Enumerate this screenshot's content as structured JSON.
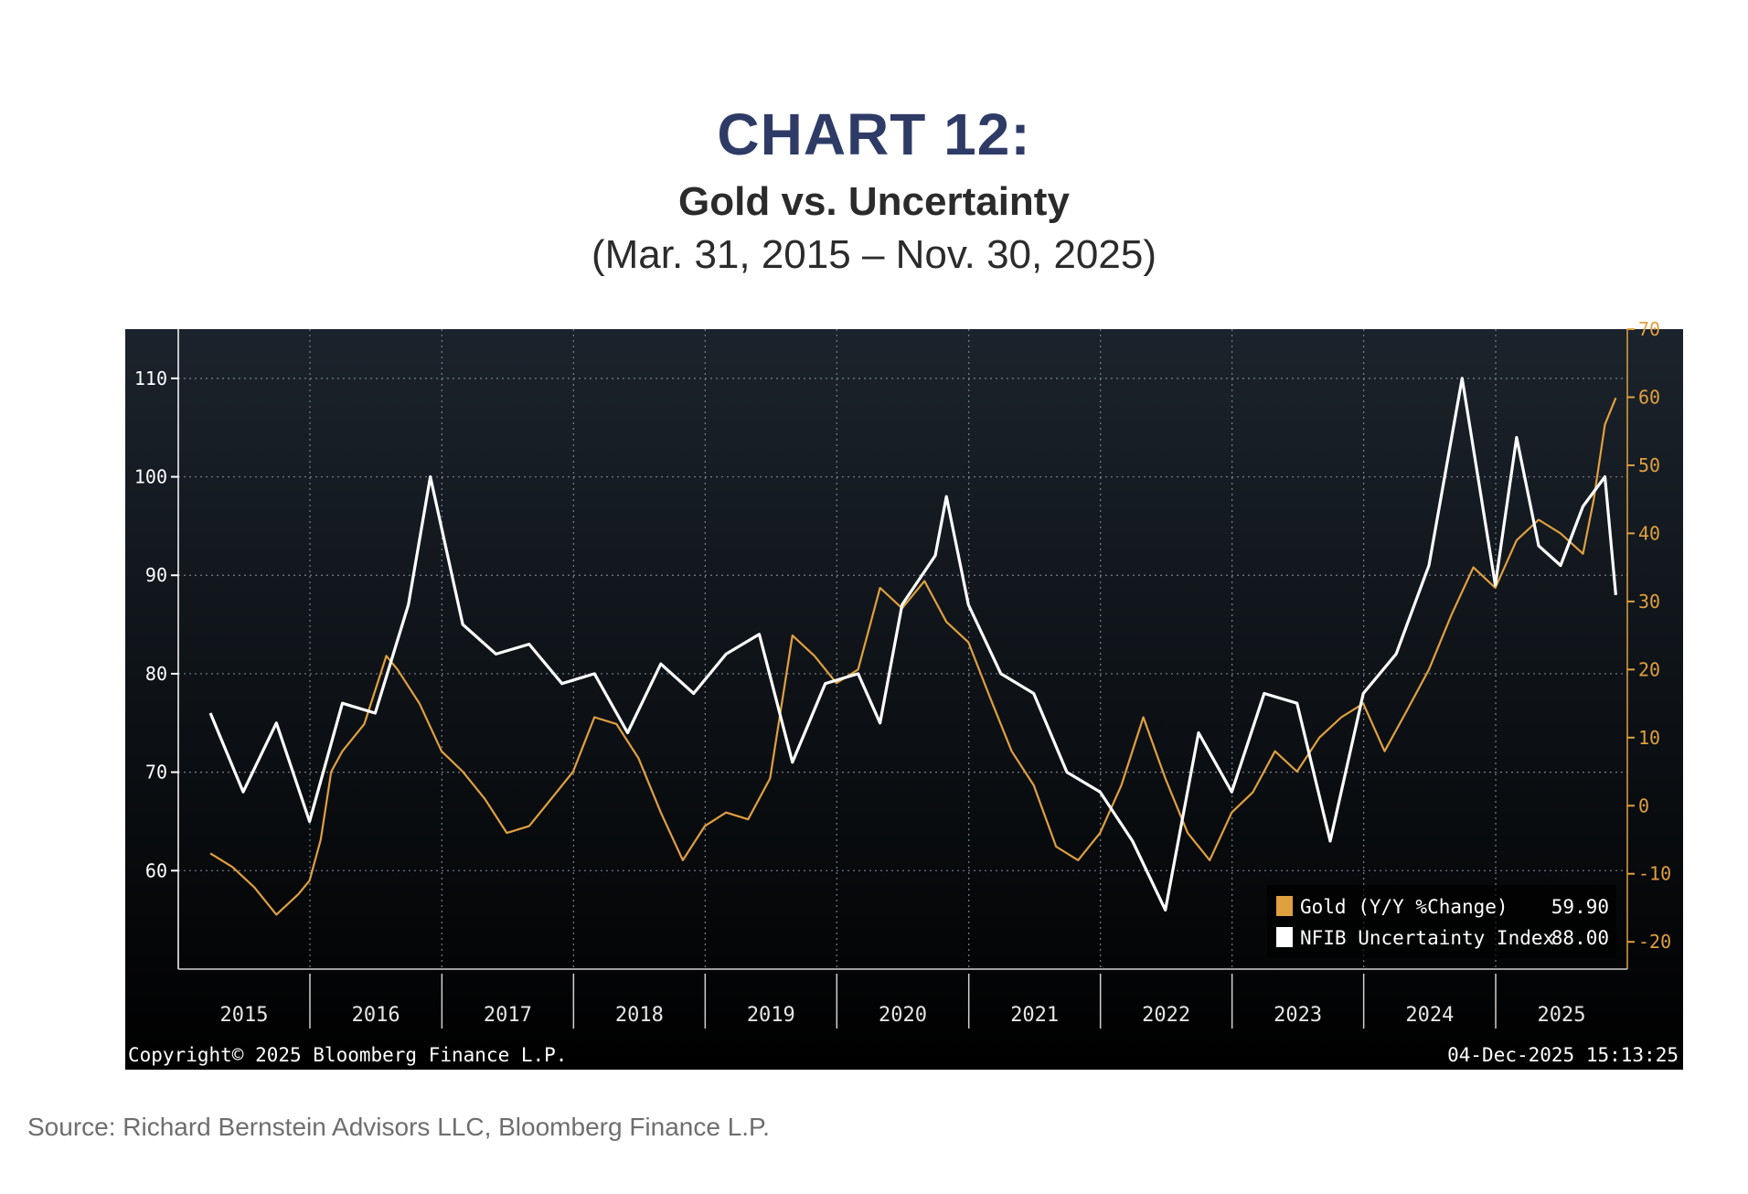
{
  "header": {
    "chart_number": "CHART 12:",
    "title": "Gold vs. Uncertainty",
    "period": "(Mar. 31, 2015 – Nov. 30, 2025)"
  },
  "source": "Source: Richard Bernstein Advisors LLC, Bloomberg Finance L.P.",
  "footer": {
    "copyright": "Copyright© 2025 Bloomberg Finance L.P.",
    "timestamp": "04-Dec-2025 15:13:25"
  },
  "colors": {
    "background_top": "#1b232c",
    "background_bottom": "#000000",
    "gold": "#e0a040",
    "uncertainty": "#ffffff",
    "left_axis": "#ffffff",
    "right_axis": "#e0a040"
  },
  "chart_data": {
    "type": "line",
    "x_range": [
      "2015-03-31",
      "2025-11-30"
    ],
    "year_labels": [
      "2015",
      "2016",
      "2017",
      "2018",
      "2019",
      "2020",
      "2021",
      "2022",
      "2023",
      "2024",
      "2025"
    ],
    "left_axis": {
      "ticks": [
        "60",
        "70",
        "80",
        "90",
        "100",
        "110"
      ],
      "ylim": [
        50,
        115
      ]
    },
    "right_axis": {
      "ticks": [
        "-20",
        "-10",
        "0",
        "10",
        "20",
        "30",
        "40",
        "50",
        "60",
        "70"
      ],
      "ylim": [
        -24,
        70
      ]
    },
    "grid": true,
    "legend_position": "bottom-right",
    "series": [
      {
        "name": "Gold (Y/Y %Change)",
        "axis": "right",
        "last_value": "59.90",
        "points": [
          [
            "2015-03-31",
            -7
          ],
          [
            "2015-05-31",
            -9
          ],
          [
            "2015-07-31",
            -12
          ],
          [
            "2015-09-30",
            -16
          ],
          [
            "2015-11-30",
            -13
          ],
          [
            "2015-12-31",
            -11
          ],
          [
            "2016-01-31",
            -5
          ],
          [
            "2016-02-29",
            5
          ],
          [
            "2016-03-31",
            8
          ],
          [
            "2016-05-31",
            12
          ],
          [
            "2016-07-31",
            22
          ],
          [
            "2016-08-31",
            20
          ],
          [
            "2016-10-31",
            15
          ],
          [
            "2016-12-31",
            8
          ],
          [
            "2017-02-28",
            5
          ],
          [
            "2017-04-30",
            1
          ],
          [
            "2017-06-30",
            -4
          ],
          [
            "2017-08-31",
            -3
          ],
          [
            "2017-10-31",
            1
          ],
          [
            "2017-12-31",
            5
          ],
          [
            "2018-02-28",
            13
          ],
          [
            "2018-04-30",
            12
          ],
          [
            "2018-06-30",
            7
          ],
          [
            "2018-08-31",
            -1
          ],
          [
            "2018-10-31",
            -8
          ],
          [
            "2018-12-31",
            -3
          ],
          [
            "2019-02-28",
            -1
          ],
          [
            "2019-04-30",
            -2
          ],
          [
            "2019-06-30",
            4
          ],
          [
            "2019-08-31",
            25
          ],
          [
            "2019-10-31",
            22
          ],
          [
            "2019-12-31",
            18
          ],
          [
            "2020-02-29",
            20
          ],
          [
            "2020-04-30",
            32
          ],
          [
            "2020-06-30",
            29
          ],
          [
            "2020-08-31",
            33
          ],
          [
            "2020-10-31",
            27
          ],
          [
            "2020-12-31",
            24
          ],
          [
            "2021-02-28",
            16
          ],
          [
            "2021-04-30",
            8
          ],
          [
            "2021-06-30",
            3
          ],
          [
            "2021-08-31",
            -6
          ],
          [
            "2021-10-31",
            -8
          ],
          [
            "2021-12-31",
            -4
          ],
          [
            "2022-02-28",
            3
          ],
          [
            "2022-04-30",
            13
          ],
          [
            "2022-06-30",
            4
          ],
          [
            "2022-08-31",
            -4
          ],
          [
            "2022-10-31",
            -8
          ],
          [
            "2022-12-31",
            -1
          ],
          [
            "2023-02-28",
            2
          ],
          [
            "2023-04-30",
            8
          ],
          [
            "2023-06-30",
            5
          ],
          [
            "2023-08-31",
            10
          ],
          [
            "2023-10-31",
            13
          ],
          [
            "2023-12-31",
            15
          ],
          [
            "2024-02-28",
            8
          ],
          [
            "2024-04-30",
            14
          ],
          [
            "2024-06-30",
            20
          ],
          [
            "2024-08-31",
            28
          ],
          [
            "2024-10-31",
            35
          ],
          [
            "2024-12-31",
            32
          ],
          [
            "2025-02-28",
            39
          ],
          [
            "2025-04-30",
            42
          ],
          [
            "2025-06-30",
            40
          ],
          [
            "2025-08-31",
            37
          ],
          [
            "2025-09-30",
            45
          ],
          [
            "2025-10-31",
            56
          ],
          [
            "2025-11-30",
            59.9
          ]
        ]
      },
      {
        "name": "NFIB Uncertainty Index",
        "axis": "left",
        "last_value": "88.00",
        "points": [
          [
            "2015-03-31",
            76
          ],
          [
            "2015-06-30",
            68
          ],
          [
            "2015-09-30",
            75
          ],
          [
            "2015-12-31",
            65
          ],
          [
            "2016-03-31",
            77
          ],
          [
            "2016-06-30",
            76
          ],
          [
            "2016-09-30",
            87
          ],
          [
            "2016-11-30",
            100
          ],
          [
            "2017-02-28",
            85
          ],
          [
            "2017-05-31",
            82
          ],
          [
            "2017-08-31",
            83
          ],
          [
            "2017-11-30",
            79
          ],
          [
            "2018-02-28",
            80
          ],
          [
            "2018-05-31",
            74
          ],
          [
            "2018-08-31",
            81
          ],
          [
            "2018-11-30",
            78
          ],
          [
            "2019-02-28",
            82
          ],
          [
            "2019-05-31",
            84
          ],
          [
            "2019-08-31",
            71
          ],
          [
            "2019-11-30",
            79
          ],
          [
            "2020-02-29",
            80
          ],
          [
            "2020-04-30",
            75
          ],
          [
            "2020-06-30",
            87
          ],
          [
            "2020-09-30",
            92
          ],
          [
            "2020-10-31",
            98
          ],
          [
            "2020-12-31",
            87
          ],
          [
            "2021-03-31",
            80
          ],
          [
            "2021-06-30",
            78
          ],
          [
            "2021-09-30",
            70
          ],
          [
            "2021-12-31",
            68
          ],
          [
            "2022-03-31",
            63
          ],
          [
            "2022-06-30",
            56
          ],
          [
            "2022-09-30",
            74
          ],
          [
            "2022-12-31",
            68
          ],
          [
            "2023-03-31",
            78
          ],
          [
            "2023-06-30",
            77
          ],
          [
            "2023-09-30",
            63
          ],
          [
            "2023-12-31",
            78
          ],
          [
            "2024-03-31",
            82
          ],
          [
            "2024-06-30",
            91
          ],
          [
            "2024-09-30",
            110
          ],
          [
            "2024-12-31",
            89
          ],
          [
            "2025-02-28",
            104
          ],
          [
            "2025-04-30",
            93
          ],
          [
            "2025-06-30",
            91
          ],
          [
            "2025-08-31",
            97
          ],
          [
            "2025-10-31",
            100
          ],
          [
            "2025-11-30",
            88
          ]
        ]
      }
    ]
  }
}
